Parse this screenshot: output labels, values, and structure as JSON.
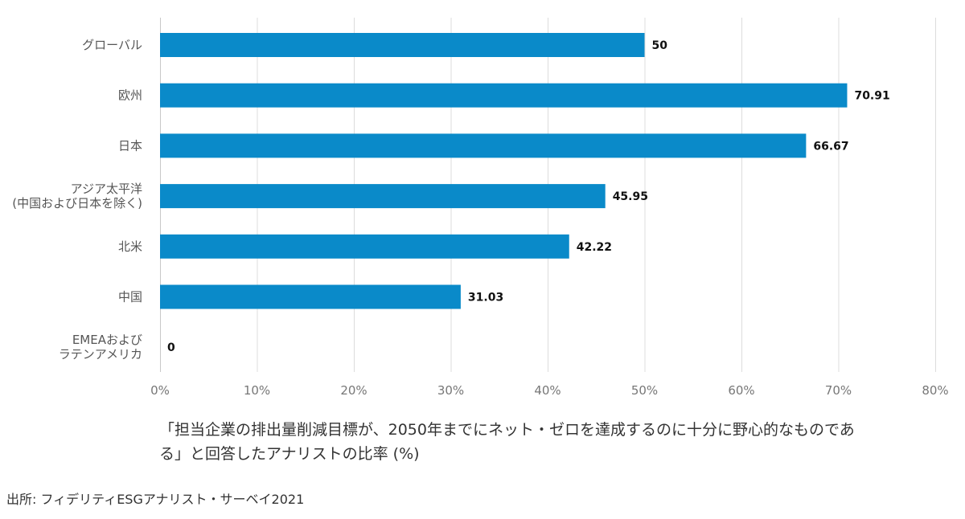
{
  "chart_data": {
    "type": "bar",
    "orientation": "horizontal",
    "categories": [
      [
        "グローバル"
      ],
      [
        "欧州"
      ],
      [
        "日本"
      ],
      [
        "アジア太平洋",
        "(中国および日本を除く)"
      ],
      [
        "北米"
      ],
      [
        "中国"
      ],
      [
        "EMEAおよび",
        "ラテンアメリカ"
      ]
    ],
    "values": [
      50,
      70.91,
      66.67,
      45.95,
      42.22,
      31.03,
      0
    ],
    "value_labels": [
      "50",
      "70.91",
      "66.67",
      "45.95",
      "42.22",
      "31.03",
      "0"
    ],
    "xlim": [
      0,
      80
    ],
    "xticks": [
      0,
      10,
      20,
      30,
      40,
      50,
      60,
      70,
      80
    ],
    "xtick_labels": [
      "0%",
      "10%",
      "20%",
      "30%",
      "40%",
      "50%",
      "60%",
      "70%",
      "80%"
    ],
    "bar_color": "#0a8ac9",
    "grid": true
  },
  "caption": {
    "line1": "「担当企業の排出量削減目標が、2050年までにネット・ゼロを達成するのに十分に野心的なものであ",
    "line2": "る」と回答したアナリストの比率 (%)"
  },
  "source": "出所: フィデリティESGアナリスト・サーベイ2021"
}
